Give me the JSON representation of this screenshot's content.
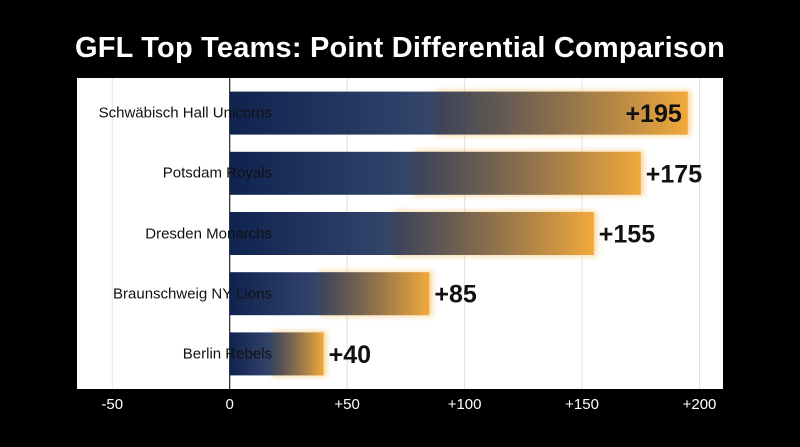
{
  "chart_data": {
    "type": "bar",
    "orientation": "horizontal",
    "title": "GFL Top Teams: Point Differential Comparison",
    "categories": [
      "Schwäbisch Hall Unicorns",
      "Potsdam Royals",
      "Dresden Monarchs",
      "Braunschweig NY Lions",
      "Berlin Rebels"
    ],
    "values": [
      195,
      175,
      155,
      85,
      40
    ],
    "value_labels": [
      "+195",
      "+175",
      "+155",
      "+85",
      "+40"
    ],
    "xlim": [
      -65,
      210
    ],
    "xticks": [
      -50,
      0,
      50,
      100,
      150,
      200
    ],
    "xtick_labels": [
      "-50",
      "0",
      "+50",
      "+100",
      "+150",
      "+200"
    ],
    "grid": "vertical",
    "legend": "none",
    "colors": {
      "bar_start": "#0f2350",
      "bar_end": "#f2a93c",
      "glow": "#f6b54a",
      "background": "#000000",
      "plot_background": "#ffffff"
    }
  }
}
